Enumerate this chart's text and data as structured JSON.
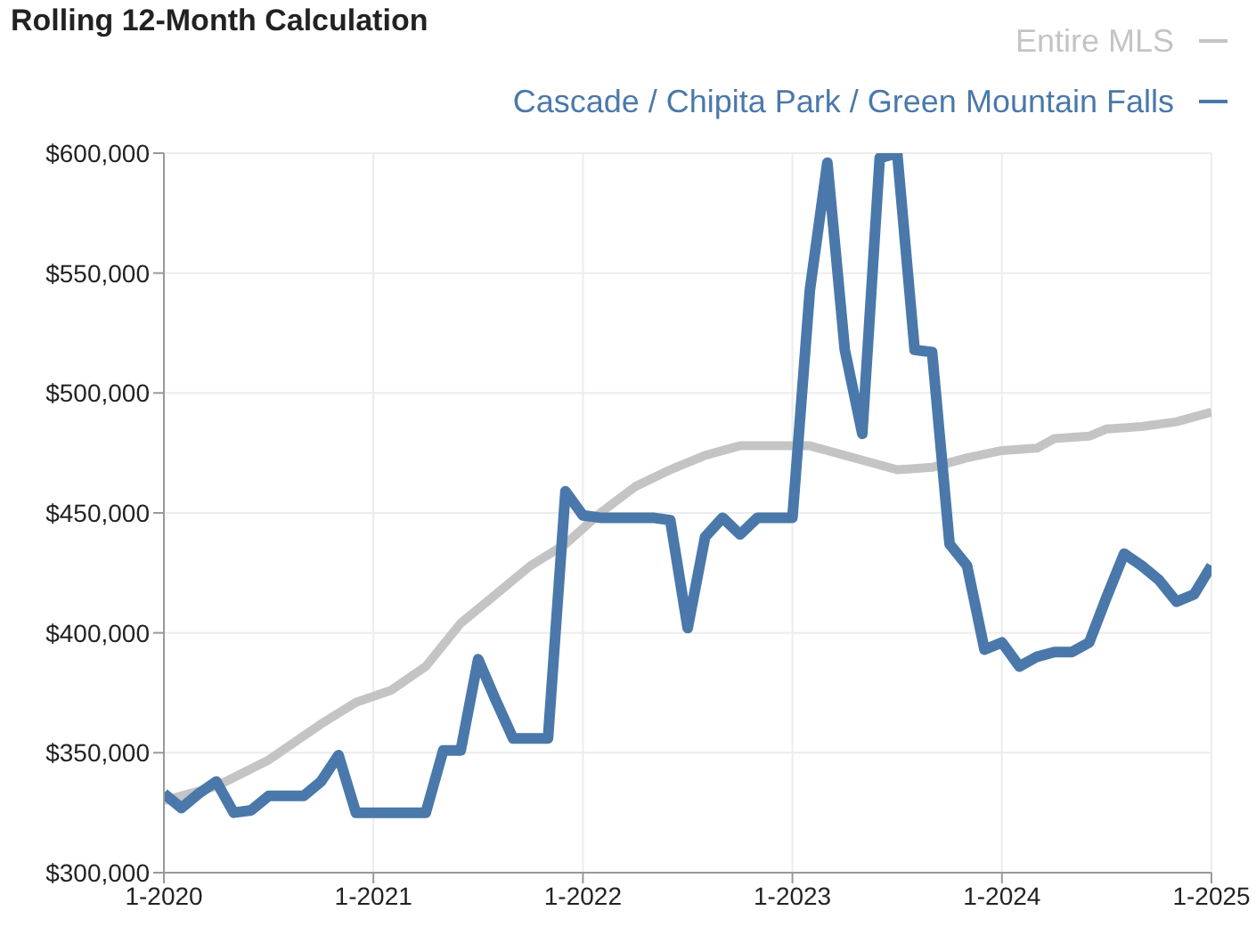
{
  "chart_data": {
    "type": "line",
    "title": "Rolling 12-Month Calculation",
    "series": [
      {
        "name": "Entire MLS",
        "color": "#c4c4c4",
        "x": [
          "2020-01",
          "2020-04",
          "2020-07",
          "2020-10",
          "2020-12",
          "2021-02",
          "2021-04",
          "2021-06",
          "2021-08",
          "2021-10",
          "2021-12",
          "2022-02",
          "2022-04",
          "2022-06",
          "2022-08",
          "2022-10",
          "2022-12",
          "2023-02",
          "2023-03",
          "2023-05",
          "2023-07",
          "2023-09",
          "2023-11",
          "2024-01",
          "2024-03",
          "2024-04",
          "2024-06",
          "2024-07",
          "2024-09",
          "2024-11",
          "2025-01"
        ],
        "values": [
          330000,
          336000,
          347000,
          362000,
          371000,
          376000,
          386000,
          404000,
          416000,
          428000,
          437000,
          450000,
          461000,
          468000,
          474000,
          478000,
          478000,
          478000,
          476000,
          472000,
          468000,
          469000,
          473000,
          476000,
          477000,
          481000,
          482000,
          485000,
          486000,
          488000,
          492000
        ]
      },
      {
        "name": "Cascade / Chipita Park / Green Mountain Falls",
        "color": "#4a78aa",
        "x": [
          "2020-01",
          "2020-02",
          "2020-03",
          "2020-04",
          "2020-05",
          "2020-06",
          "2020-07",
          "2020-08",
          "2020-09",
          "2020-10",
          "2020-11",
          "2020-12",
          "2021-01",
          "2021-02",
          "2021-03",
          "2021-04",
          "2021-05",
          "2021-06",
          "2021-07",
          "2021-08",
          "2021-09",
          "2021-10",
          "2021-11",
          "2021-12",
          "2022-01",
          "2022-02",
          "2022-03",
          "2022-04",
          "2022-05",
          "2022-06",
          "2022-07",
          "2022-08",
          "2022-09",
          "2022-10",
          "2022-11",
          "2022-12",
          "2023-01",
          "2023-02",
          "2023-03",
          "2023-04",
          "2023-05",
          "2023-06",
          "2023-07",
          "2023-08",
          "2023-09",
          "2023-10",
          "2023-11",
          "2023-12",
          "2024-01",
          "2024-02",
          "2024-03",
          "2024-04",
          "2024-05",
          "2024-06",
          "2024-07",
          "2024-08",
          "2024-09",
          "2024-10",
          "2024-11",
          "2024-12",
          "2025-01"
        ],
        "values": [
          333000,
          327000,
          333000,
          338000,
          325000,
          326000,
          332000,
          332000,
          332000,
          338000,
          349000,
          325000,
          325000,
          325000,
          325000,
          325000,
          351000,
          351000,
          389000,
          372000,
          356000,
          356000,
          356000,
          459000,
          449000,
          448000,
          448000,
          448000,
          448000,
          447000,
          402000,
          440000,
          448000,
          441000,
          448000,
          448000,
          448000,
          543000,
          596000,
          518000,
          483000,
          598000,
          600000,
          518000,
          517000,
          437000,
          428000,
          393000,
          396000,
          386000,
          390000,
          392000,
          392000,
          396000,
          415000,
          433000,
          428000,
          422000,
          413000,
          416000,
          428000
        ]
      }
    ],
    "xlim": [
      "2020-01",
      "2025-01"
    ],
    "xticks": [
      {
        "value": "2020-01",
        "label": "1-2020"
      },
      {
        "value": "2021-01",
        "label": "1-2021"
      },
      {
        "value": "2022-01",
        "label": "1-2022"
      },
      {
        "value": "2023-01",
        "label": "1-2023"
      },
      {
        "value": "2024-01",
        "label": "1-2024"
      },
      {
        "value": "2025-01",
        "label": "1-2025"
      }
    ],
    "ylim": [
      300000,
      600000
    ],
    "yticks": [
      {
        "value": 300000,
        "label": "$300,000"
      },
      {
        "value": 350000,
        "label": "$350,000"
      },
      {
        "value": 400000,
        "label": "$400,000"
      },
      {
        "value": 450000,
        "label": "$450,000"
      },
      {
        "value": 500000,
        "label": "$500,000"
      },
      {
        "value": 550000,
        "label": "$550,000"
      },
      {
        "value": 600000,
        "label": "$600,000"
      }
    ],
    "grid": true,
    "legend": "top right",
    "marker": "none",
    "line_style": "solid"
  }
}
